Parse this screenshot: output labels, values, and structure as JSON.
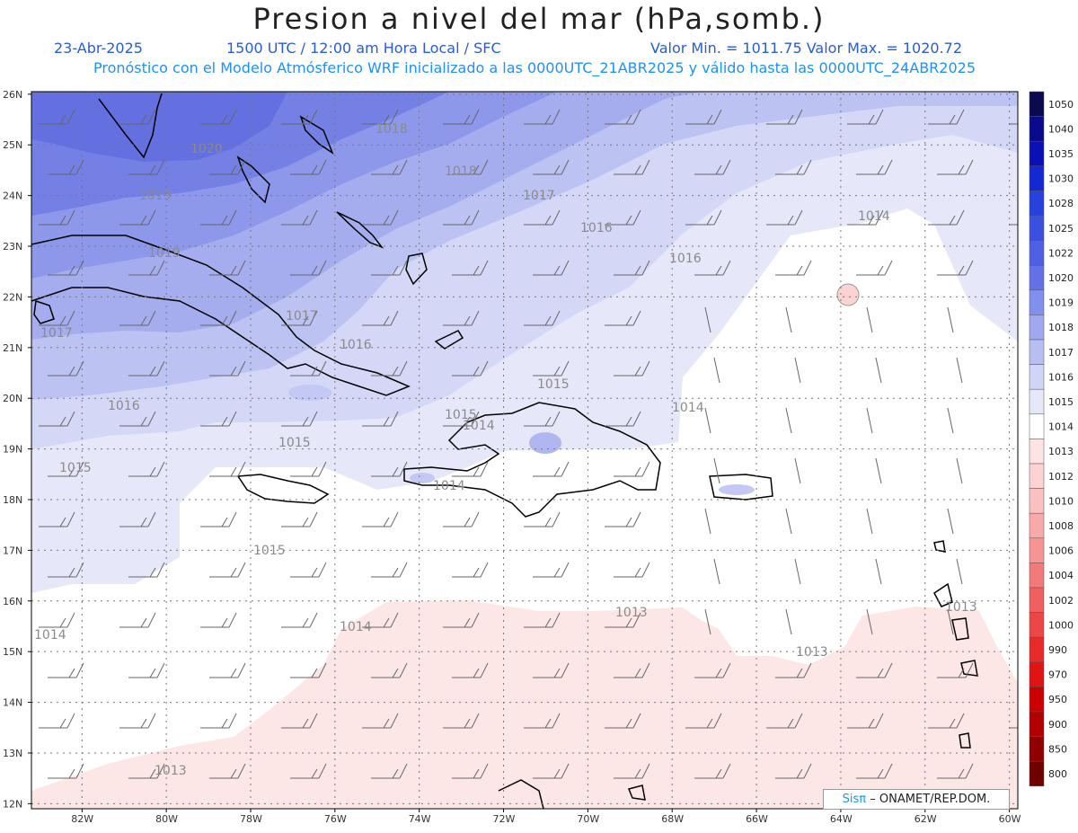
{
  "header": {
    "title": "Presion a nivel del mar (hPa,somb.)",
    "date": "23-Abr-2025",
    "time": "1500 UTC / 12:00 am Hora Local / SFC",
    "value_range": "Valor Min. = 1011.75  Valor Max. = 1020.72",
    "model_info": "Pronóstico con el Modelo Atmósferico WRF inicializado a las 0000UTC_21ABR2025 y válido hasta las  0000UTC_24ABR2025"
  },
  "map": {
    "lat_labels": [
      "26N",
      "25N",
      "24N",
      "23N",
      "22N",
      "21N",
      "20N",
      "19N",
      "18N",
      "17N",
      "16N",
      "15N",
      "14N",
      "13N",
      "12N"
    ],
    "lon_labels": [
      "82W",
      "80W",
      "78W",
      "76W",
      "74W",
      "72W",
      "70W",
      "68W",
      "66W",
      "64W",
      "62W",
      "60W"
    ],
    "contour_labels": [
      "1020",
      "1019",
      "1019",
      "1018",
      "1018",
      "1017",
      "1017",
      "1017",
      "1016",
      "1016",
      "1016",
      "1016",
      "1015",
      "1015",
      "1015",
      "1015",
      "1015",
      "1014",
      "1014",
      "1014",
      "1014",
      "1014",
      "1014",
      "1013",
      "1013",
      "1013",
      "1013"
    ]
  },
  "colorbar": {
    "levels": [
      "1050",
      "1040",
      "1035",
      "1030",
      "1028",
      "1025",
      "1022",
      "1020",
      "1019",
      "1018",
      "1017",
      "1016",
      "1015",
      "1014",
      "1013",
      "1012",
      "1010",
      "1008",
      "1006",
      "1004",
      "1002",
      "1000",
      "990",
      "970",
      "950",
      "900",
      "850",
      "800"
    ],
    "colors": [
      "#0a0a50",
      "#0a0a8c",
      "#0a10b4",
      "#1428d2",
      "#2840dc",
      "#3c50e0",
      "#5060e4",
      "#6470e8",
      "#8090ec",
      "#a0a8f0",
      "#b8bef2",
      "#d0d4f6",
      "#e6e8fa",
      "#ffffff",
      "#fde4e4",
      "#fcd2d2",
      "#fbc0c0",
      "#f8aaaa",
      "#f69494",
      "#f37a7a",
      "#f06060",
      "#ec4646",
      "#e82a2a",
      "#e01414",
      "#cc0000",
      "#b00000",
      "#900000",
      "#700000"
    ]
  },
  "credit": {
    "brand": "Sisπ",
    "text": "– ONAMET/REP.DOM."
  }
}
